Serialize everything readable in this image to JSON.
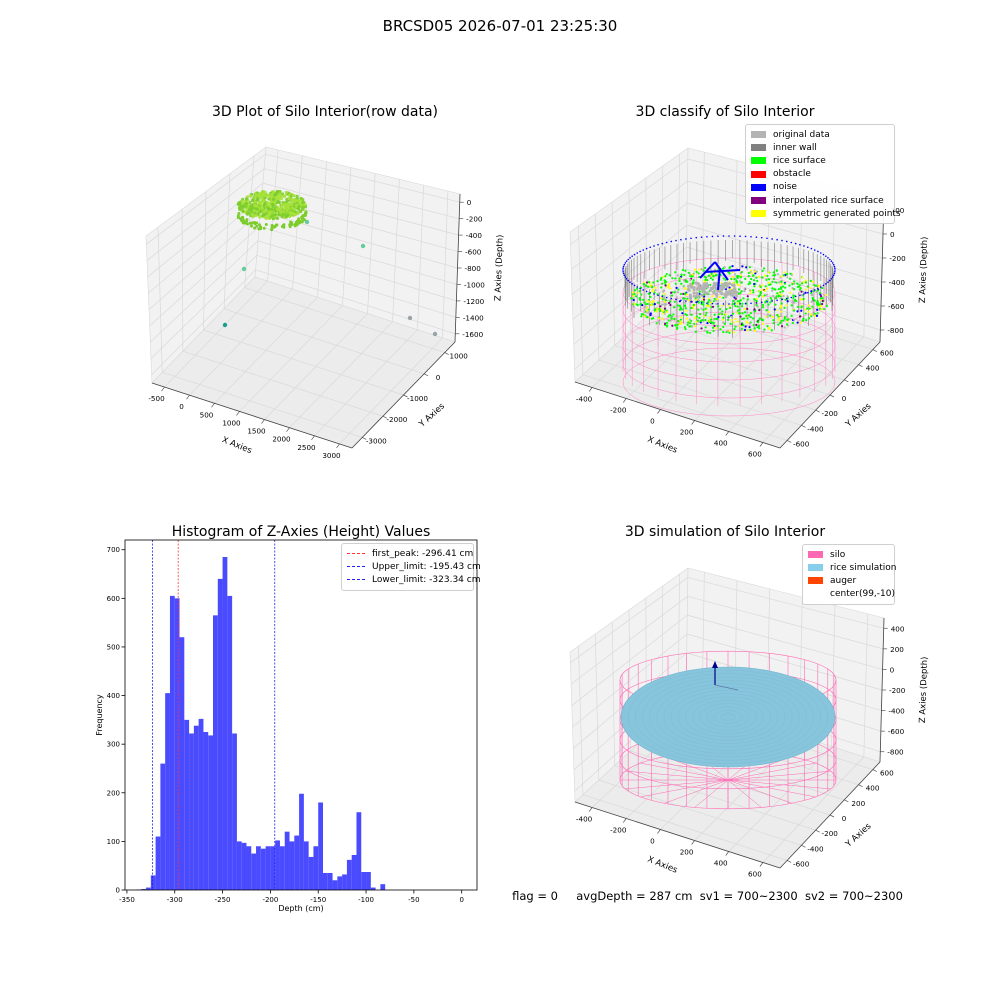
{
  "figure": {
    "suptitle": "BRCSD05 2026-07-01 23:25:30",
    "status_line": "flag = 0     avgDepth = 287 cm  sv1 = 700~2300  sv2 = 700~2300"
  },
  "chart_data": [
    {
      "type": "scatter",
      "projection": "3d",
      "title": "3D Plot of Silo Interior(row data)",
      "xlabel": "X Axies",
      "ylabel": "Y Axies",
      "zlabel": "Z Axies (Depth)",
      "x_ticks": [
        "-500",
        "0",
        "500",
        "1000",
        "1500",
        "2000",
        "2500",
        "3000"
      ],
      "y_ticks": [
        "-3000",
        "-2000",
        "-1000",
        "0",
        "1000"
      ],
      "z_ticks": [
        "-1600",
        "-1400",
        "-1200",
        "-1000",
        "-800",
        "-600",
        "-400",
        "-200",
        "0"
      ],
      "colors": {
        "surface": "#a6e23a",
        "surface_dark": "#7ccd2c",
        "outlier_a": "#66cc99",
        "outlier_b": "#1a9e8f",
        "outlier_c": "#9aa3a8"
      }
    },
    {
      "type": "scatter",
      "projection": "3d",
      "title": "3D classify of Silo Interior",
      "xlabel": "X Axies",
      "ylabel": "Y Axies",
      "zlabel": "Z Axies (Depth)",
      "x_ticks": [
        "-400",
        "-200",
        "0",
        "200",
        "400",
        "600"
      ],
      "y_ticks": [
        "-600",
        "-400",
        "-200",
        "0",
        "200",
        "400",
        "600"
      ],
      "z_ticks": [
        "-800",
        "-600",
        "-400",
        "-200",
        "0",
        "200"
      ],
      "legend": [
        {
          "label": "original data",
          "color": "#b3b3b3"
        },
        {
          "label": "inner wall",
          "color": "#808080"
        },
        {
          "label": "rice surface",
          "color": "#00ff00"
        },
        {
          "label": "obstacle",
          "color": "#ff0000"
        },
        {
          "label": "noise",
          "color": "#0000ff"
        },
        {
          "label": "interpolated rice surface",
          "color": "#800080"
        },
        {
          "label": "symmetric generated points",
          "color": "#ffff00"
        }
      ],
      "wire_color": "#ff88c8"
    },
    {
      "type": "bar",
      "title": "Histogram of Z-Axies (Height) Values",
      "xlabel": "Depth (cm)",
      "ylabel": "Frequency",
      "xlim": [
        -352,
        16
      ],
      "ylim": [
        0,
        720
      ],
      "bin_width": 5,
      "bin_starts": [
        -340,
        -335,
        -330,
        -325,
        -320,
        -315,
        -310,
        -305,
        -300,
        -295,
        -290,
        -285,
        -280,
        -275,
        -270,
        -265,
        -260,
        -255,
        -250,
        -245,
        -240,
        -235,
        -230,
        -225,
        -220,
        -215,
        -210,
        -205,
        -200,
        -195,
        -190,
        -185,
        -180,
        -175,
        -170,
        -165,
        -160,
        -155,
        -150,
        -145,
        -140,
        -135,
        -130,
        -125,
        -120,
        -115,
        -110,
        -105,
        -100,
        -95,
        -90,
        -85,
        -80,
        -75,
        -70,
        -65,
        -60,
        -55,
        -50,
        -45,
        -40,
        -35,
        -30,
        -25,
        -20,
        -15,
        -10,
        -5,
        0
      ],
      "values": [
        1,
        2,
        5,
        30,
        110,
        260,
        405,
        605,
        600,
        520,
        350,
        322,
        338,
        352,
        325,
        318,
        565,
        640,
        685,
        605,
        322,
        100,
        97,
        90,
        75,
        90,
        85,
        90,
        90,
        102,
        90,
        120,
        100,
        112,
        198,
        100,
        68,
        90,
        180,
        35,
        35,
        20,
        28,
        32,
        62,
        72,
        160,
        37,
        37,
        5,
        0,
        12,
        0,
        0,
        0,
        0,
        0,
        0,
        0,
        0,
        0,
        0,
        0,
        0,
        0,
        0,
        0,
        0,
        0
      ],
      "color": "#4a4aff",
      "x_ticks": [
        -350,
        -300,
        -250,
        -200,
        -150,
        -100,
        -50,
        0
      ],
      "y_ticks": [
        0,
        100,
        200,
        300,
        400,
        500,
        600,
        700
      ],
      "vlines": [
        {
          "label": "first_peak: -296.41 cm",
          "x": -296.41,
          "color": "#ff3333"
        },
        {
          "label": "Upper_limit: -195.43 cm",
          "x": -195.43,
          "color": "#2222ee"
        },
        {
          "label": "Lower_limit: -323.34 cm",
          "x": -323.34,
          "color": "#2222ee"
        }
      ]
    },
    {
      "type": "scatter",
      "projection": "3d",
      "title": "3D simulation of Silo Interior",
      "xlabel": "X Axies",
      "ylabel": "Y Axies",
      "zlabel": "Z Axies (Depth)",
      "x_ticks": [
        "-400",
        "-200",
        "0",
        "200",
        "400",
        "600"
      ],
      "y_ticks": [
        "-600",
        "-400",
        "-200",
        "0",
        "200",
        "400",
        "600"
      ],
      "z_ticks": [
        "-800",
        "-600",
        "-400",
        "-200",
        "0",
        "200",
        "400"
      ],
      "legend": [
        {
          "label": "silo",
          "color": "#ff69b4"
        },
        {
          "label": "rice simulation",
          "color": "#87ceeb"
        },
        {
          "label": "auger",
          "color": "#ff4500"
        },
        {
          "label": "center(99,-10)",
          "color": ""
        }
      ],
      "colors": {
        "silo": "#ff69b4",
        "rice": "#87c5dd",
        "auger": "#00008b"
      }
    }
  ]
}
